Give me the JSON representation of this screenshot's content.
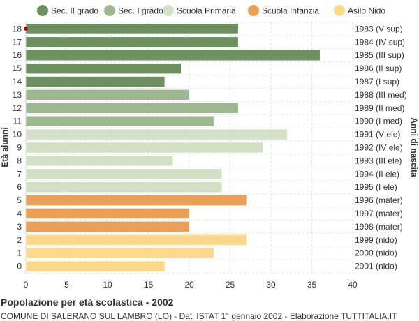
{
  "chart_data": {
    "type": "bar",
    "orientation": "horizontal",
    "title": "Popolazione per età scolastica - 2002",
    "subtitle": "COMUNE DI SALERANO SUL LAMBRO (LO) - Dati ISTAT 1° gennaio 2002 - Elaborazione TUTTITALIA.IT",
    "ylabel_left": "Età alunni",
    "ylabel_right": "Anni di nascita",
    "xlim": [
      0,
      40
    ],
    "xticks": [
      0,
      5,
      10,
      15,
      20,
      25,
      30,
      35,
      40
    ],
    "grid": true,
    "legend_position": "top",
    "series": [
      {
        "name": "Sec. II grado",
        "color": "#6e8f5f"
      },
      {
        "name": "Sec. I grado",
        "color": "#9db88f"
      },
      {
        "name": "Scuola Primaria",
        "color": "#d4e0c6"
      },
      {
        "name": "Scuola Infanzia",
        "color": "#eb9e55"
      },
      {
        "name": "Asilo Nido",
        "color": "#fcd88a"
      }
    ],
    "bars": [
      {
        "age": "18",
        "year": "1983 (V sup)",
        "value": 26,
        "series": 0
      },
      {
        "age": "17",
        "year": "1984 (IV sup)",
        "value": 26,
        "series": 0
      },
      {
        "age": "16",
        "year": "1985 (III sup)",
        "value": 36,
        "series": 0
      },
      {
        "age": "15",
        "year": "1986 (II sup)",
        "value": 19,
        "series": 0
      },
      {
        "age": "14",
        "year": "1987 (I sup)",
        "value": 17,
        "series": 0
      },
      {
        "age": "13",
        "year": "1988 (III med)",
        "value": 20,
        "series": 1
      },
      {
        "age": "12",
        "year": "1989 (II med)",
        "value": 26,
        "series": 1
      },
      {
        "age": "11",
        "year": "1990 (I med)",
        "value": 23,
        "series": 1
      },
      {
        "age": "10",
        "year": "1991 (V ele)",
        "value": 32,
        "series": 2
      },
      {
        "age": "9",
        "year": "1992 (IV ele)",
        "value": 29,
        "series": 2
      },
      {
        "age": "8",
        "year": "1993 (III ele)",
        "value": 18,
        "series": 2
      },
      {
        "age": "7",
        "year": "1994 (II ele)",
        "value": 24,
        "series": 2
      },
      {
        "age": "6",
        "year": "1995 (I ele)",
        "value": 24,
        "series": 2
      },
      {
        "age": "5",
        "year": "1996 (mater)",
        "value": 27,
        "series": 3
      },
      {
        "age": "4",
        "year": "1997 (mater)",
        "value": 20,
        "series": 3
      },
      {
        "age": "3",
        "year": "1998 (mater)",
        "value": 20,
        "series": 3
      },
      {
        "age": "2",
        "year": "1999 (nido)",
        "value": 27,
        "series": 4
      },
      {
        "age": "1",
        "year": "2000 (nido)",
        "value": 23,
        "series": 4
      },
      {
        "age": "0",
        "year": "2001 (nido)",
        "value": 17,
        "series": 4
      }
    ]
  }
}
